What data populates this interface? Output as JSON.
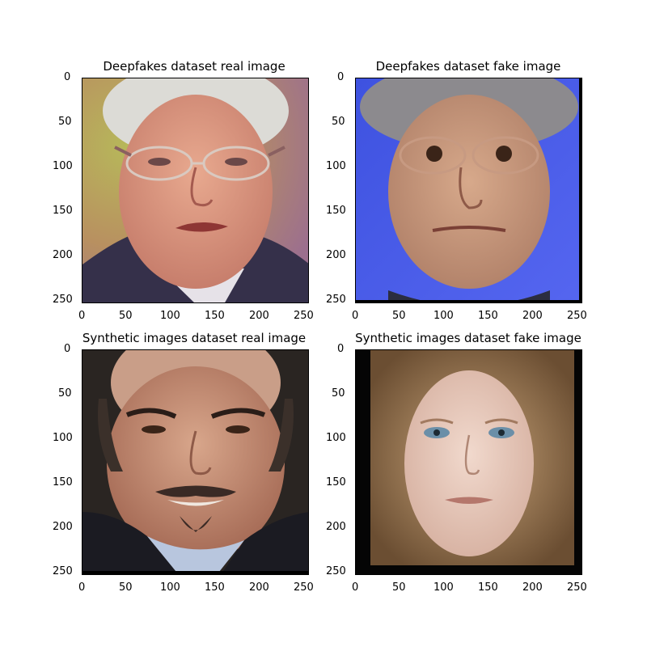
{
  "panels": [
    {
      "title": "Deepfakes dataset real image",
      "image": "photo of an older man with grey hair and glasses, dark suit, warm blurred background",
      "yticks": [
        "0",
        "50",
        "100",
        "150",
        "200",
        "250"
      ],
      "xticks": [
        "0",
        "50",
        "100",
        "150",
        "200",
        "250"
      ]
    },
    {
      "title": "Deepfakes dataset fake image",
      "image": "face-swapped man with glasses, blue background, black border at bottom/right",
      "yticks": [
        "0",
        "50",
        "100",
        "150",
        "200",
        "250"
      ],
      "xticks": [
        "0",
        "50",
        "100",
        "150",
        "200",
        "250"
      ]
    },
    {
      "title": "Synthetic images dataset real image",
      "image": "smiling bald man with goatee, dark suit, blue shirt",
      "yticks": [
        "0",
        "50",
        "100",
        "150",
        "200",
        "250"
      ],
      "xticks": [
        "0",
        "50",
        "100",
        "150",
        "200",
        "250"
      ]
    },
    {
      "title": "Synthetic images dataset fake image",
      "image": "synthetic woman face with wavy blonde hair, black border",
      "yticks": [
        "0",
        "50",
        "100",
        "150",
        "200",
        "250"
      ],
      "xticks": [
        "0",
        "50",
        "100",
        "150",
        "200",
        "250"
      ]
    }
  ],
  "colors": {
    "bg": "#ffffff",
    "axis": "#000000"
  }
}
